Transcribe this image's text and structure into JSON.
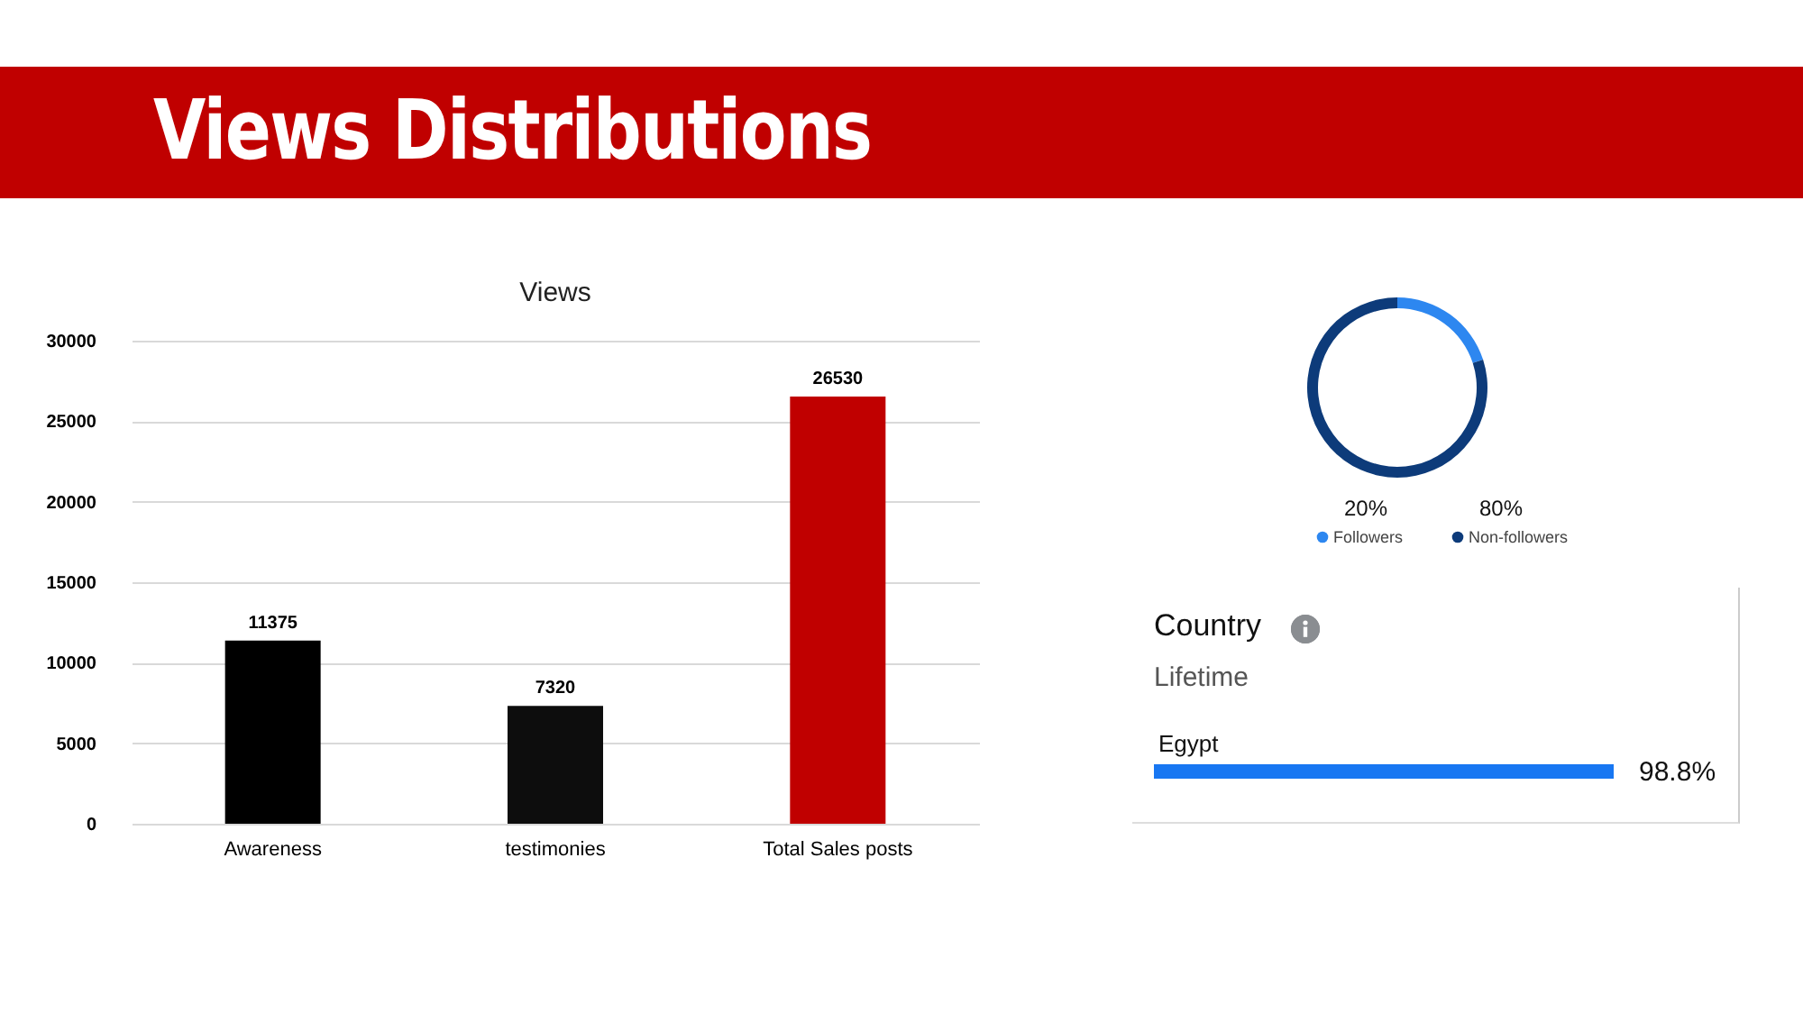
{
  "chart_data": [
    {
      "type": "other",
      "title": "Views Distributions"
    },
    {
      "type": "bar",
      "title": "Views",
      "categories": [
        "Awareness",
        "testimonies",
        "Total Sales posts"
      ],
      "values": [
        11375,
        7320,
        26530
      ],
      "colors": [
        "#000000",
        "#0d0d0d",
        "#c00000"
      ],
      "ylim": [
        0,
        30000
      ],
      "yticks": [
        0,
        5000,
        10000,
        15000,
        20000,
        25000,
        30000
      ],
      "grid": "y",
      "data_labels": true
    },
    {
      "type": "donut",
      "categories": [
        "Followers",
        "Non-followers"
      ],
      "values": [
        20,
        80
      ],
      "colors": [
        "#2d87f0",
        "#0d3b7a"
      ],
      "value_labels": [
        "20%",
        "80%"
      ],
      "legend": "bottom"
    },
    {
      "type": "bar",
      "orientation": "horizontal",
      "title": "Country",
      "subtitle": "Lifetime",
      "categories": [
        "Egypt"
      ],
      "values": [
        98.8
      ],
      "colors": [
        "#1877f2"
      ],
      "value_labels": [
        "98.8%"
      ]
    }
  ]
}
